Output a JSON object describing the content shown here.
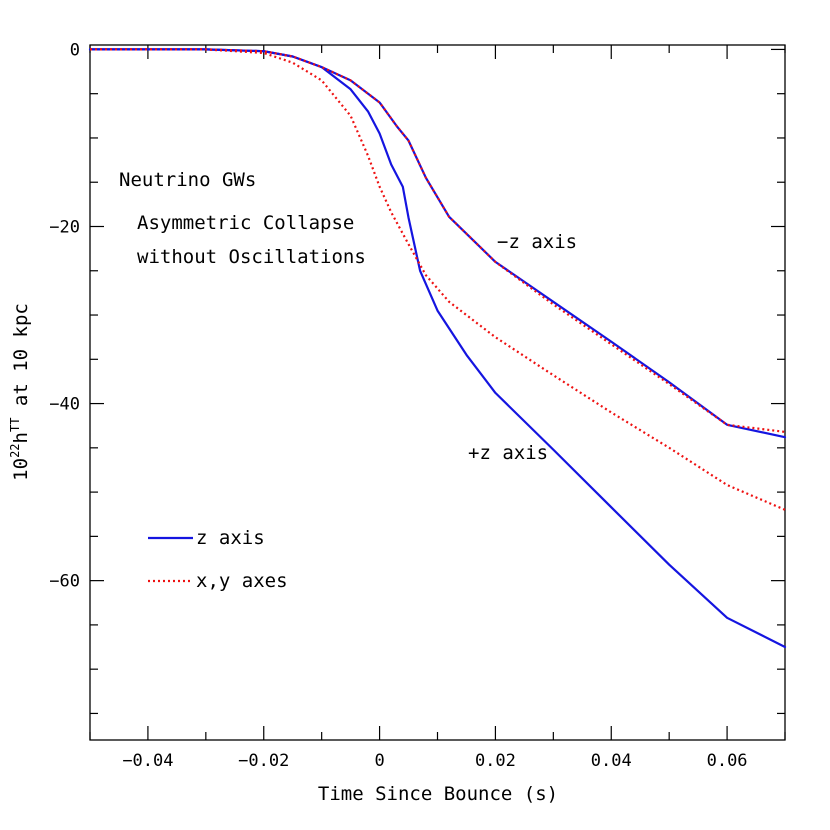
{
  "chart_data": {
    "type": "line",
    "title": "",
    "xlabel": "Time Since Bounce (s)",
    "ylabel_main": "10",
    "ylabel_sup": "22",
    "ylabel_mid": "h",
    "ylabel_sup2": "TT",
    "ylabel_rest": " at 10 kpc",
    "xlim": [
      -0.05,
      0.07
    ],
    "ylim": [
      -78,
      0.5
    ],
    "x_ticks": [
      -0.04,
      -0.02,
      0,
      0.02,
      0.04,
      0.06
    ],
    "x_tick_labels": [
      "−0.04",
      "−0.02",
      "0",
      "0.02",
      "0.04",
      "0.06"
    ],
    "y_ticks": [
      0,
      -20,
      -40,
      -60
    ],
    "y_tick_labels": [
      "0",
      "−20",
      "−40",
      "−60"
    ],
    "annotations": {
      "title1": "Neutrino GWs",
      "title2": "Asymmetric Collapse",
      "title3": "without Oscillations",
      "minus_z": "−z axis",
      "plus_z": "+z axis"
    },
    "legend": [
      {
        "name": "z axis",
        "color": "#1515e0",
        "style": "solid"
      },
      {
        "name": "x,y axes",
        "color": "#ee1111",
        "style": "dotted"
      }
    ],
    "series": [
      {
        "name": "z axis (−z)",
        "color": "#1515e0",
        "style": "solid",
        "x": [
          -0.05,
          -0.03,
          -0.02,
          -0.015,
          -0.01,
          -0.005,
          0,
          0.003,
          0.005,
          0.008,
          0.012,
          0.02,
          0.03,
          0.04,
          0.05,
          0.06,
          0.07
        ],
        "y": [
          0,
          0,
          -0.2,
          -0.8,
          -2.0,
          -3.5,
          -6.0,
          -8.7,
          -10.3,
          -14.5,
          -18.9,
          -24.0,
          -28.5,
          -33.0,
          -37.6,
          -42.4,
          -43.8
        ]
      },
      {
        "name": "z axis (+z)",
        "color": "#1515e0",
        "style": "solid",
        "x": [
          -0.05,
          -0.03,
          -0.02,
          -0.015,
          -0.01,
          -0.005,
          -0.002,
          0,
          0.002,
          0.004,
          0.005,
          0.007,
          0.01,
          0.015,
          0.02,
          0.03,
          0.04,
          0.05,
          0.06,
          0.07
        ],
        "y": [
          0,
          0,
          -0.2,
          -0.8,
          -2.0,
          -4.5,
          -7.0,
          -9.5,
          -13.0,
          -15.5,
          -19.0,
          -25.0,
          -29.5,
          -34.5,
          -38.8,
          -45.2,
          -51.7,
          -58.2,
          -64.2,
          -67.5
        ]
      },
      {
        "name": "x,y axes (upper)",
        "color": "#ee1111",
        "style": "dotted",
        "x": [
          -0.05,
          -0.03,
          -0.02,
          -0.015,
          -0.01,
          -0.005,
          0,
          0.003,
          0.005,
          0.008,
          0.012,
          0.02,
          0.03,
          0.04,
          0.05,
          0.06,
          0.07
        ],
        "y": [
          0,
          0,
          -0.2,
          -0.8,
          -2.0,
          -3.5,
          -6.0,
          -8.7,
          -10.3,
          -14.5,
          -18.9,
          -24.0,
          -28.8,
          -33.3,
          -37.8,
          -42.4,
          -43.2
        ]
      },
      {
        "name": "x,y axes (lower)",
        "color": "#ee1111",
        "style": "dotted",
        "x": [
          -0.05,
          -0.03,
          -0.02,
          -0.015,
          -0.01,
          -0.005,
          -0.002,
          0,
          0.002,
          0.005,
          0.008,
          0.012,
          0.02,
          0.03,
          0.04,
          0.05,
          0.06,
          0.07
        ],
        "y": [
          0,
          0,
          -0.4,
          -1.5,
          -3.5,
          -7.5,
          -12.0,
          -15.5,
          -18.4,
          -22.0,
          -25.5,
          -28.5,
          -32.5,
          -36.8,
          -41.0,
          -45.0,
          -49.2,
          -52.0
        ]
      }
    ]
  }
}
